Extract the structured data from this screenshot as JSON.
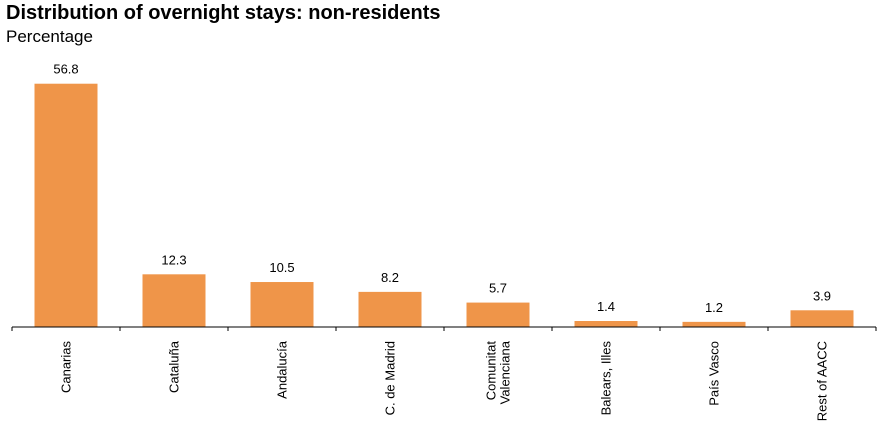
{
  "chart_data": {
    "type": "bar",
    "title": "Distribution of overnight stays: non-residents",
    "subtitle": "Percentage",
    "categories": [
      "Canarias",
      "Cataluña",
      "Andalucía",
      "C. de Madrid",
      "Comunitat\nValenciana",
      "Balears, Illes",
      "País Vasco",
      "Rest of AACC"
    ],
    "values": [
      56.8,
      12.3,
      10.5,
      8.2,
      5.7,
      1.4,
      1.2,
      3.9
    ],
    "value_labels": [
      "56.8",
      "12.3",
      "10.5",
      "8.2",
      "5.7",
      "1.4",
      "1.2",
      "3.9"
    ],
    "xlabel": "",
    "ylabel": "",
    "ylim": [
      0,
      60
    ],
    "grid": false,
    "bar_color": "#ef9549"
  }
}
